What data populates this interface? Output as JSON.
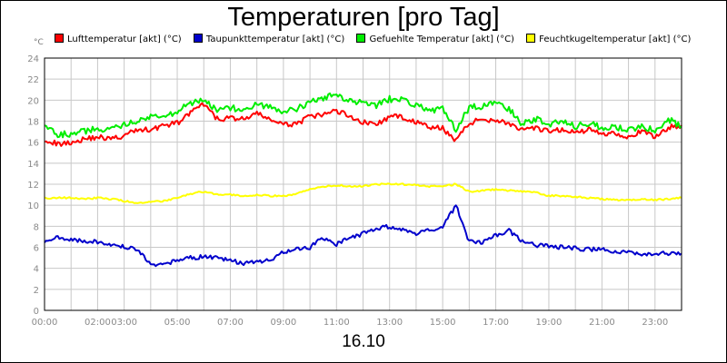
{
  "chart_data": {
    "type": "line",
    "title": "Temperaturen [pro Tag]",
    "unit_label": "°C",
    "xlabel": "16.10",
    "ylabel": "°C",
    "xlim": [
      0,
      24
    ],
    "ylim": [
      0,
      24
    ],
    "grid": true,
    "legend_position": "top",
    "x_tick_labels": [
      "00:00",
      "02:00",
      "03:00",
      "05:00",
      "07:00",
      "09:00",
      "11:00",
      "13:00",
      "15:00",
      "17:00",
      "19:00",
      "21:00",
      "23:00"
    ],
    "x_tick_values": [
      0,
      2,
      3,
      5,
      7,
      9,
      11,
      13,
      15,
      17,
      19,
      21,
      23
    ],
    "y_ticks": [
      0,
      2,
      4,
      6,
      8,
      10,
      12,
      14,
      16,
      18,
      20,
      22,
      24
    ],
    "x": [
      0,
      0.5,
      1,
      1.5,
      2,
      2.5,
      3,
      3.5,
      4,
      4.5,
      5,
      5.5,
      6,
      6.5,
      7,
      7.5,
      8,
      8.5,
      9,
      9.5,
      10,
      10.5,
      11,
      11.5,
      12,
      12.5,
      13,
      13.5,
      14,
      14.5,
      15,
      15.5,
      16,
      16.5,
      17,
      17.5,
      18,
      18.5,
      19,
      19.5,
      20,
      20.5,
      21,
      21.5,
      22,
      22.5,
      23,
      23.5,
      24
    ],
    "series": [
      {
        "name": "Lufttemperatur [akt] (°C)",
        "color": "#ff0000",
        "values": [
          16.3,
          15.8,
          16.0,
          16.3,
          16.5,
          16.3,
          16.6,
          17.2,
          17.2,
          17.6,
          17.8,
          18.8,
          19.6,
          18.2,
          18.3,
          18.2,
          18.7,
          18.2,
          17.6,
          17.8,
          18.4,
          18.6,
          19.0,
          18.5,
          17.9,
          17.7,
          18.4,
          18.4,
          17.9,
          17.4,
          17.3,
          16.2,
          17.8,
          18.2,
          18.1,
          17.8,
          17.1,
          17.3,
          17.0,
          17.2,
          16.9,
          17.2,
          16.8,
          16.9,
          16.5,
          17.0,
          16.5,
          17.4,
          17.6
        ]
      },
      {
        "name": "Taupunkttemperatur [akt] (°C)",
        "color": "#0000cc",
        "values": [
          6.6,
          6.9,
          6.8,
          6.6,
          6.5,
          6.3,
          6.1,
          5.8,
          4.3,
          4.3,
          4.8,
          5.0,
          5.1,
          5.0,
          4.7,
          4.5,
          4.6,
          4.8,
          5.5,
          5.8,
          6.0,
          6.9,
          6.3,
          6.9,
          7.3,
          7.8,
          8.0,
          7.6,
          7.3,
          7.6,
          7.9,
          10.0,
          6.5,
          6.5,
          7.1,
          7.6,
          6.5,
          6.2,
          6.1,
          6.0,
          5.9,
          5.8,
          5.8,
          5.6,
          5.6,
          5.3,
          5.4,
          5.4,
          5.4
        ]
      },
      {
        "name": "Gefuehlte Temperatur [akt] (°C)",
        "color": "#00ee00",
        "values": [
          17.8,
          16.7,
          16.8,
          17.0,
          17.3,
          17.2,
          17.6,
          18.0,
          18.4,
          18.4,
          19.0,
          19.7,
          19.9,
          19.1,
          19.2,
          19.2,
          19.6,
          19.3,
          18.8,
          19.2,
          19.8,
          20.2,
          20.5,
          19.9,
          19.7,
          19.5,
          20.1,
          20.0,
          19.6,
          19.0,
          19.2,
          17.2,
          19.3,
          19.4,
          19.7,
          19.2,
          17.7,
          18.2,
          17.6,
          18.0,
          17.5,
          17.8,
          17.4,
          17.5,
          17.1,
          17.6,
          17.1,
          18.2,
          17.5
        ]
      },
      {
        "name": "Feuchtkugeltemperatur [akt] (°C)",
        "color": "#ffff00",
        "values": [
          10.7,
          10.7,
          10.7,
          10.6,
          10.7,
          10.6,
          10.4,
          10.2,
          10.3,
          10.4,
          10.7,
          11.1,
          11.3,
          11.0,
          11.0,
          10.9,
          11.0,
          10.9,
          10.9,
          11.1,
          11.5,
          11.8,
          11.9,
          11.8,
          11.8,
          12.0,
          12.0,
          12.0,
          11.9,
          11.8,
          11.8,
          12.0,
          11.3,
          11.4,
          11.5,
          11.4,
          11.3,
          11.2,
          10.9,
          10.9,
          10.8,
          10.7,
          10.6,
          10.5,
          10.5,
          10.6,
          10.5,
          10.6,
          10.7
        ]
      }
    ]
  }
}
